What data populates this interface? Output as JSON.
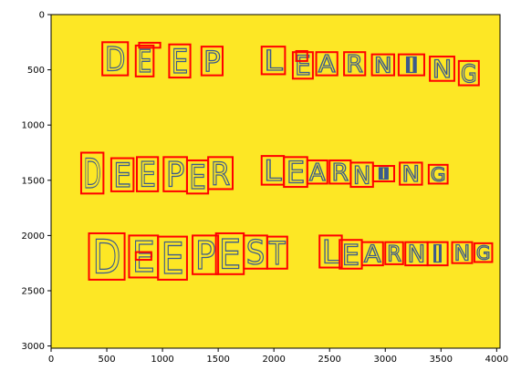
{
  "chart_data": {
    "type": "image",
    "xlim": [
      0,
      4030
    ],
    "ylim": [
      3020,
      0
    ],
    "x_ticks": [
      0,
      500,
      1000,
      1500,
      2000,
      2500,
      3000,
      3500,
      4000
    ],
    "x_tick_labels": [
      "0",
      "500",
      "1000",
      "1500",
      "2000",
      "2500",
      "3000",
      "3500",
      "4000"
    ],
    "y_ticks": [
      0,
      500,
      1000,
      1500,
      2000,
      2500,
      3000
    ],
    "y_tick_labels": [
      "0",
      "500",
      "1000",
      "1500",
      "2000",
      "2500",
      "3000"
    ],
    "colors": {
      "background": "#fde725",
      "box": "#ff0000",
      "ink": "#3b5a8c"
    },
    "words": [
      {
        "text": "DEEP",
        "row": 1
      },
      {
        "text": "LEARNING",
        "row": 1
      },
      {
        "text": "DEEPER",
        "row": 2
      },
      {
        "text": "LEARNING",
        "row": 2
      },
      {
        "text": "DEEPEST",
        "row": 3
      },
      {
        "text": "LEARNING",
        "row": 3
      }
    ],
    "boxes": [
      {
        "char": "D",
        "x0": 460,
        "y0": 250,
        "x1": 690,
        "y1": 550
      },
      {
        "char": "E",
        "x0": 760,
        "y0": 280,
        "x1": 920,
        "y1": 560
      },
      {
        "char": "",
        "x0": 790,
        "y0": 255,
        "x1": 980,
        "y1": 300
      },
      {
        "char": "E",
        "x0": 1060,
        "y0": 270,
        "x1": 1250,
        "y1": 570
      },
      {
        "char": "P",
        "x0": 1350,
        "y0": 290,
        "x1": 1540,
        "y1": 550
      },
      {
        "char": "L",
        "x0": 1890,
        "y0": 290,
        "x1": 2100,
        "y1": 540
      },
      {
        "char": "E",
        "x0": 2170,
        "y0": 340,
        "x1": 2350,
        "y1": 580
      },
      {
        "char": "",
        "x0": 2200,
        "y0": 330,
        "x1": 2300,
        "y1": 420
      },
      {
        "char": "A",
        "x0": 2380,
        "y0": 340,
        "x1": 2570,
        "y1": 550
      },
      {
        "char": "R",
        "x0": 2630,
        "y0": 340,
        "x1": 2820,
        "y1": 550
      },
      {
        "char": "N",
        "x0": 2880,
        "y0": 360,
        "x1": 3080,
        "y1": 550
      },
      {
        "char": "I",
        "x0": 3120,
        "y0": 360,
        "x1": 3350,
        "y1": 550
      },
      {
        "char": "N",
        "x0": 3400,
        "y0": 380,
        "x1": 3620,
        "y1": 600
      },
      {
        "char": "G",
        "x0": 3660,
        "y0": 420,
        "x1": 3840,
        "y1": 640
      },
      {
        "char": "D",
        "x0": 270,
        "y0": 1250,
        "x1": 470,
        "y1": 1620
      },
      {
        "char": "E",
        "x0": 540,
        "y0": 1300,
        "x1": 740,
        "y1": 1600
      },
      {
        "char": "E",
        "x0": 770,
        "y0": 1290,
        "x1": 960,
        "y1": 1600
      },
      {
        "char": "P",
        "x0": 1010,
        "y0": 1290,
        "x1": 1220,
        "y1": 1600
      },
      {
        "char": "E",
        "x0": 1220,
        "y0": 1320,
        "x1": 1410,
        "y1": 1620
      },
      {
        "char": "R",
        "x0": 1410,
        "y0": 1290,
        "x1": 1630,
        "y1": 1580
      },
      {
        "char": "L",
        "x0": 1890,
        "y0": 1280,
        "x1": 2090,
        "y1": 1540
      },
      {
        "char": "E",
        "x0": 2090,
        "y0": 1290,
        "x1": 2300,
        "y1": 1560
      },
      {
        "char": "A",
        "x0": 2300,
        "y0": 1320,
        "x1": 2480,
        "y1": 1530
      },
      {
        "char": "R",
        "x0": 2500,
        "y0": 1320,
        "x1": 2690,
        "y1": 1530
      },
      {
        "char": "N",
        "x0": 2690,
        "y0": 1340,
        "x1": 2890,
        "y1": 1560
      },
      {
        "char": "I",
        "x0": 2890,
        "y0": 1370,
        "x1": 3080,
        "y1": 1510
      },
      {
        "char": "N",
        "x0": 3130,
        "y0": 1340,
        "x1": 3330,
        "y1": 1540
      },
      {
        "char": "G",
        "x0": 3390,
        "y0": 1360,
        "x1": 3560,
        "y1": 1530
      },
      {
        "char": "D",
        "x0": 340,
        "y0": 1980,
        "x1": 660,
        "y1": 2400
      },
      {
        "char": "E",
        "x0": 700,
        "y0": 2000,
        "x1": 960,
        "y1": 2380
      },
      {
        "char": "",
        "x0": 760,
        "y0": 2150,
        "x1": 900,
        "y1": 2220
      },
      {
        "char": "E",
        "x0": 960,
        "y0": 2010,
        "x1": 1220,
        "y1": 2400
      },
      {
        "char": "P",
        "x0": 1270,
        "y0": 2000,
        "x1": 1500,
        "y1": 2350
      },
      {
        "char": "E",
        "x0": 1480,
        "y0": 1980,
        "x1": 1730,
        "y1": 2350
      },
      {
        "char": "S",
        "x0": 1730,
        "y0": 2000,
        "x1": 1940,
        "y1": 2300
      },
      {
        "char": "T",
        "x0": 1940,
        "y0": 2010,
        "x1": 2120,
        "y1": 2300
      },
      {
        "char": "L",
        "x0": 2410,
        "y0": 2000,
        "x1": 2610,
        "y1": 2290
      },
      {
        "char": "E",
        "x0": 2590,
        "y0": 2040,
        "x1": 2790,
        "y1": 2300
      },
      {
        "char": "A",
        "x0": 2790,
        "y0": 2060,
        "x1": 2980,
        "y1": 2270
      },
      {
        "char": "R",
        "x0": 3000,
        "y0": 2060,
        "x1": 3160,
        "y1": 2260
      },
      {
        "char": "N",
        "x0": 3180,
        "y0": 2060,
        "x1": 3380,
        "y1": 2270
      },
      {
        "char": "I",
        "x0": 3380,
        "y0": 2060,
        "x1": 3560,
        "y1": 2270
      },
      {
        "char": "N",
        "x0": 3600,
        "y0": 2060,
        "x1": 3780,
        "y1": 2250
      },
      {
        "char": "G",
        "x0": 3800,
        "y0": 2070,
        "x1": 3960,
        "y1": 2240
      }
    ]
  }
}
